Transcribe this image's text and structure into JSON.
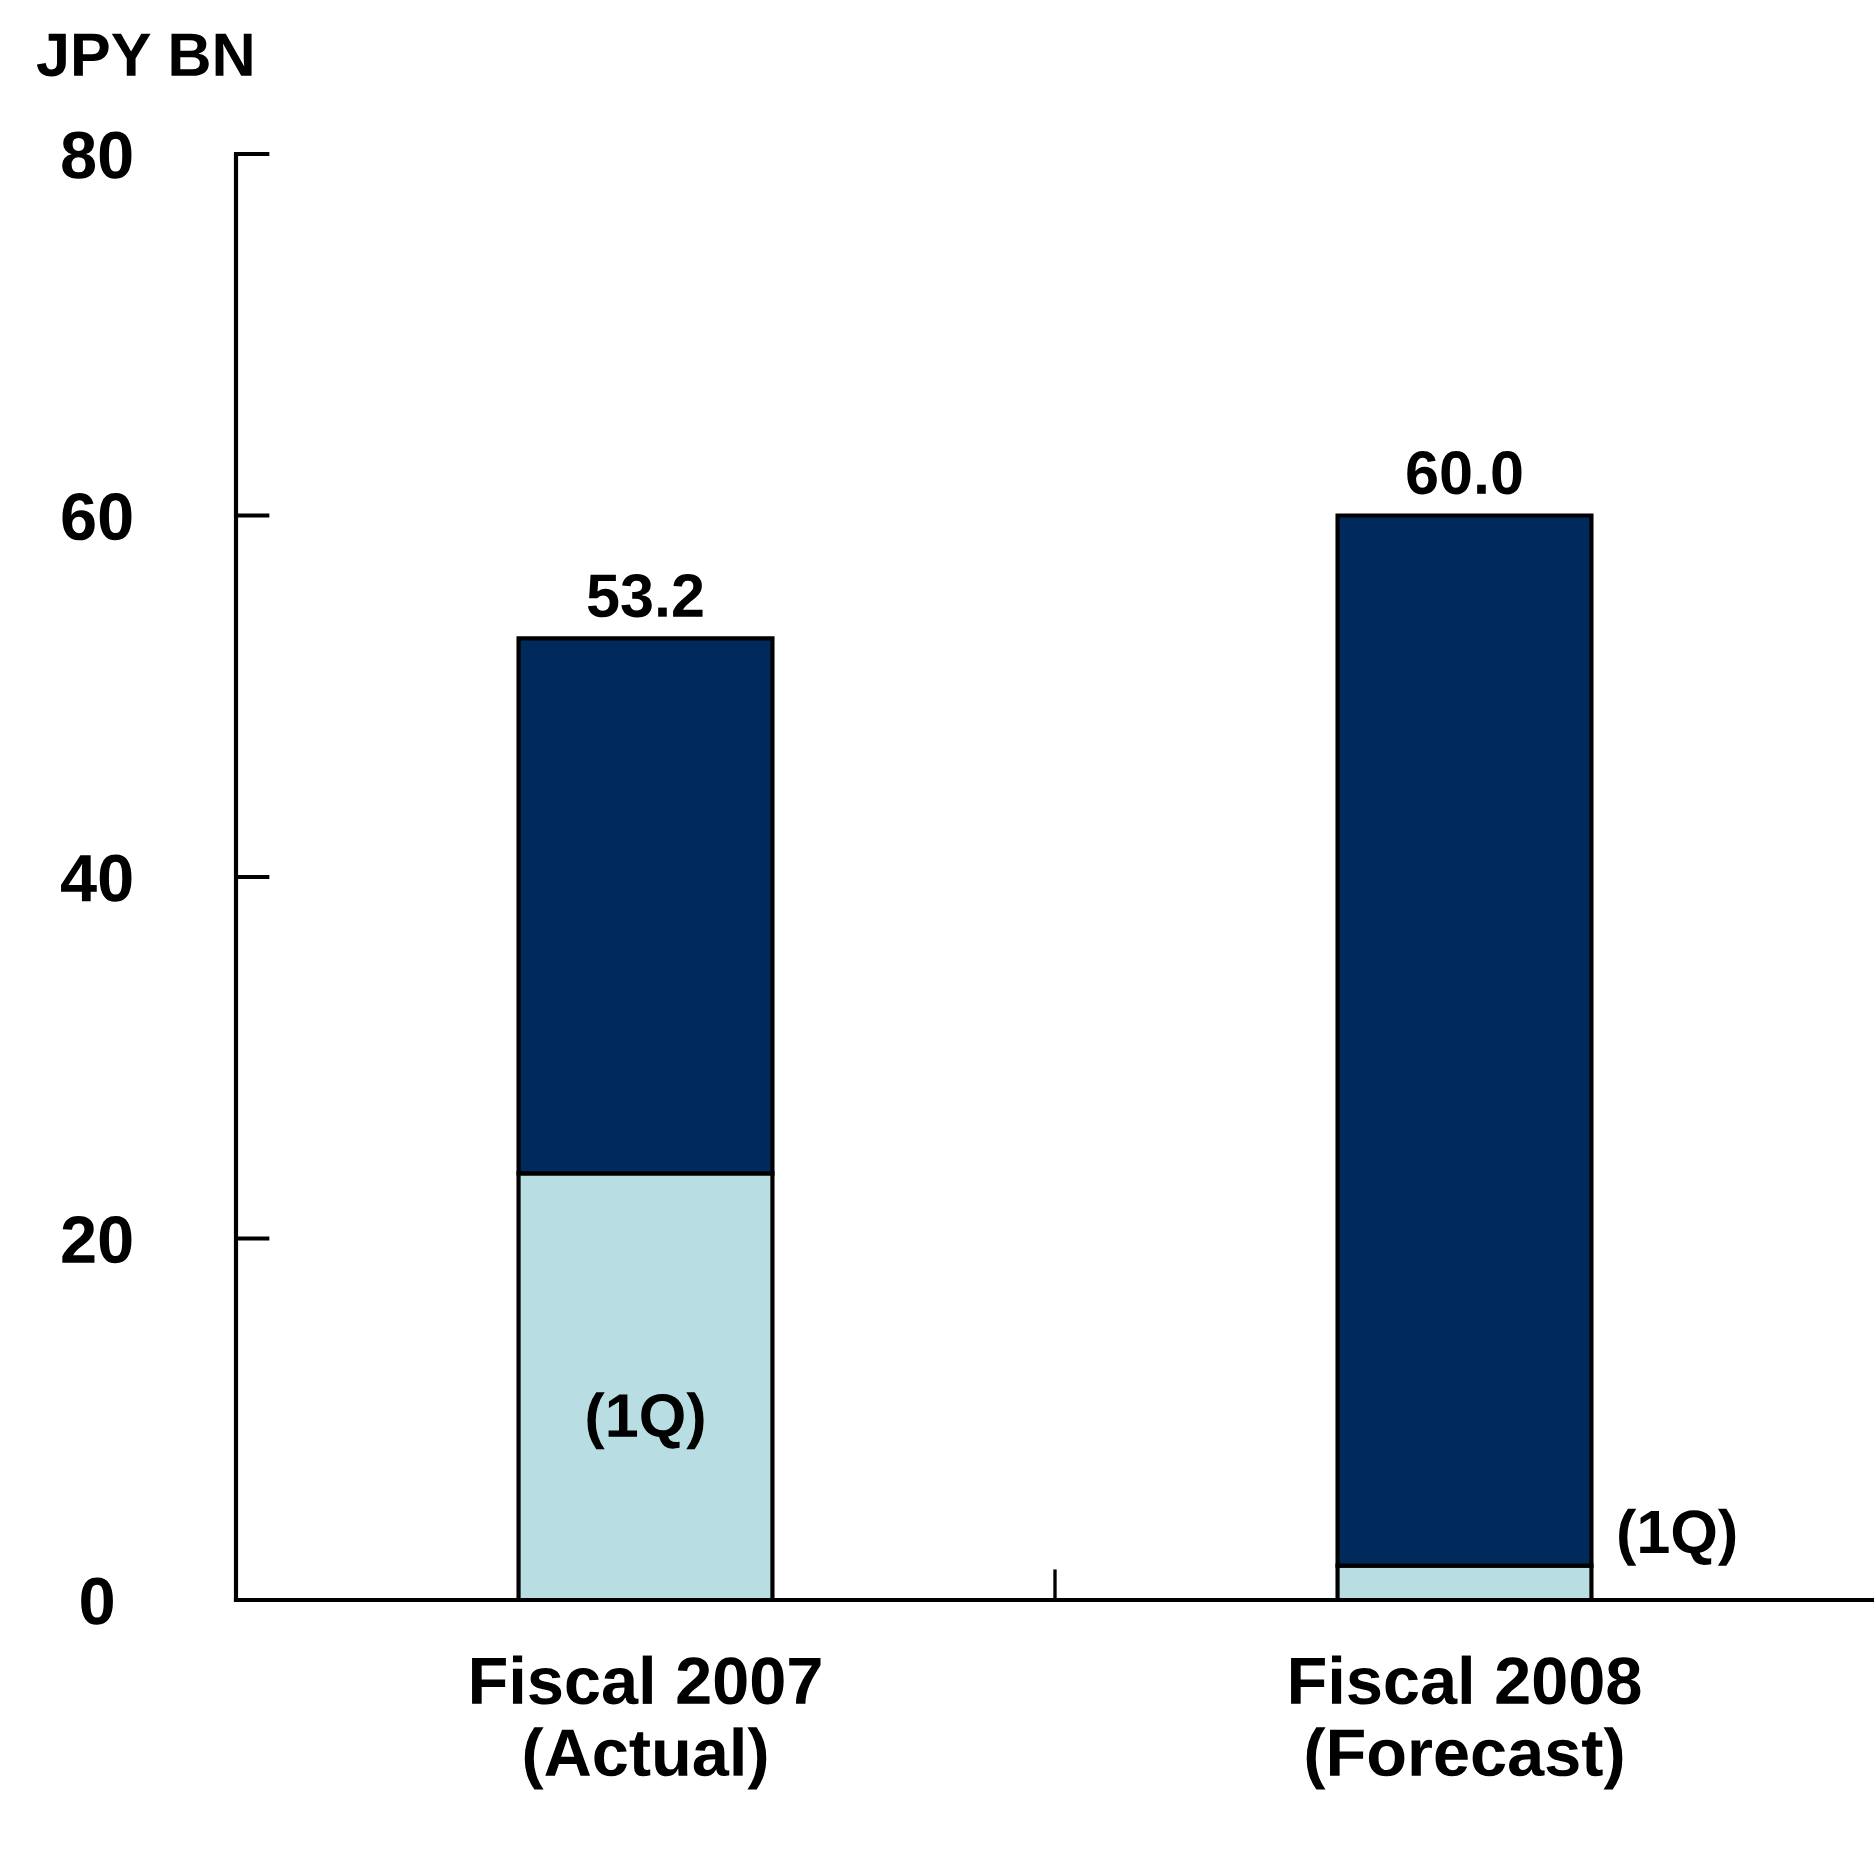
{
  "chart_data": {
    "type": "bar",
    "stacked": true,
    "ylabel": "JPY BN",
    "categories": [
      "Fiscal 2007\n(Actual)",
      "Fiscal 2008\n(Forecast)"
    ],
    "series": [
      {
        "color": "#b8dde2",
        "values": [
          23.6,
          1.9
        ]
      },
      {
        "color": "#002a5c",
        "values": [
          29.6,
          58.1
        ]
      }
    ],
    "totals": [
      "53.2",
      "60.0"
    ],
    "annotations": [
      "(1Q)",
      {
        "text": "(1Q)",
        "x": "Fiscal 2008\n(Forecast)",
        "y": 1.9
      }
    ],
    "ylim": [
      0,
      80
    ],
    "yticks": [
      0,
      20,
      40,
      60,
      80
    ],
    "grid": false,
    "legend": false
  }
}
